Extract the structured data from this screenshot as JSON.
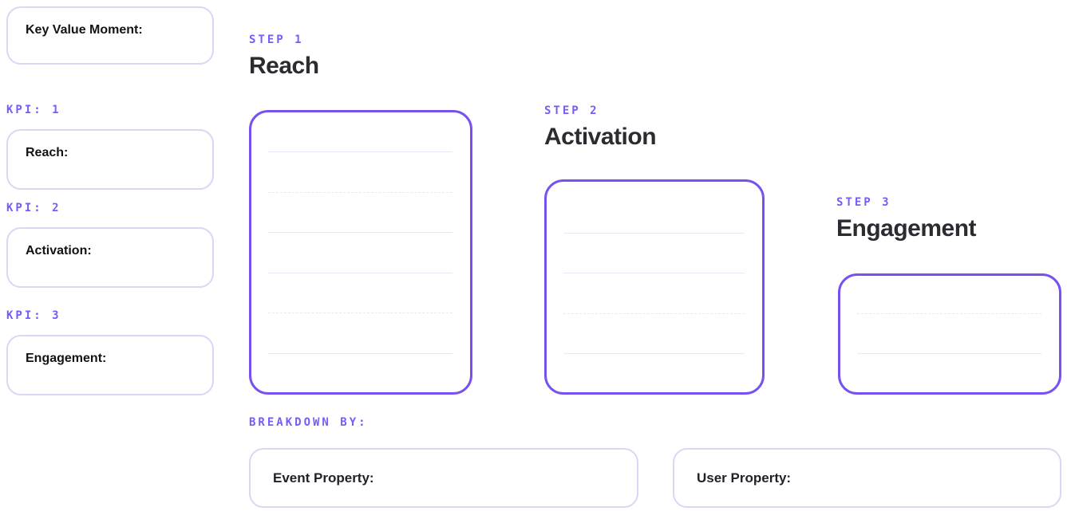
{
  "colors": {
    "accent_purple": "#7A5AF8",
    "step_box_border": "#7852F0",
    "soft_box_border": "#DAD6F6",
    "ruled_line": "#E9E7F6",
    "heading_text": "#2C2B31",
    "label_text": "#121217"
  },
  "left_panel": {
    "key_value_box": {
      "label": "Key Value Moment:"
    },
    "kpis": [
      {
        "tag": "KPI: 1",
        "label": "Reach:"
      },
      {
        "tag": "KPI: 2",
        "label": "Activation:"
      },
      {
        "tag": "KPI: 3",
        "label": "Engagement:"
      }
    ]
  },
  "steps": [
    {
      "tag": "STEP 1",
      "title": "Reach",
      "ruled_lines": {
        "count": 6,
        "styles": [
          "solid",
          "dashed",
          "solid",
          "solid",
          "dashed",
          "solid"
        ]
      }
    },
    {
      "tag": "STEP 2",
      "title": "Activation",
      "ruled_lines": {
        "count": 4,
        "styles": [
          "solid",
          "solid",
          "dashed",
          "solid"
        ]
      }
    },
    {
      "tag": "STEP 3",
      "title": "Engagement",
      "ruled_lines": {
        "count": 2,
        "styles": [
          "dashed",
          "solid"
        ]
      }
    }
  ],
  "breakdown": {
    "tag": "BREAKDOWN BY:",
    "boxes": [
      {
        "label": "Event Property:"
      },
      {
        "label": "User Property:"
      }
    ]
  }
}
